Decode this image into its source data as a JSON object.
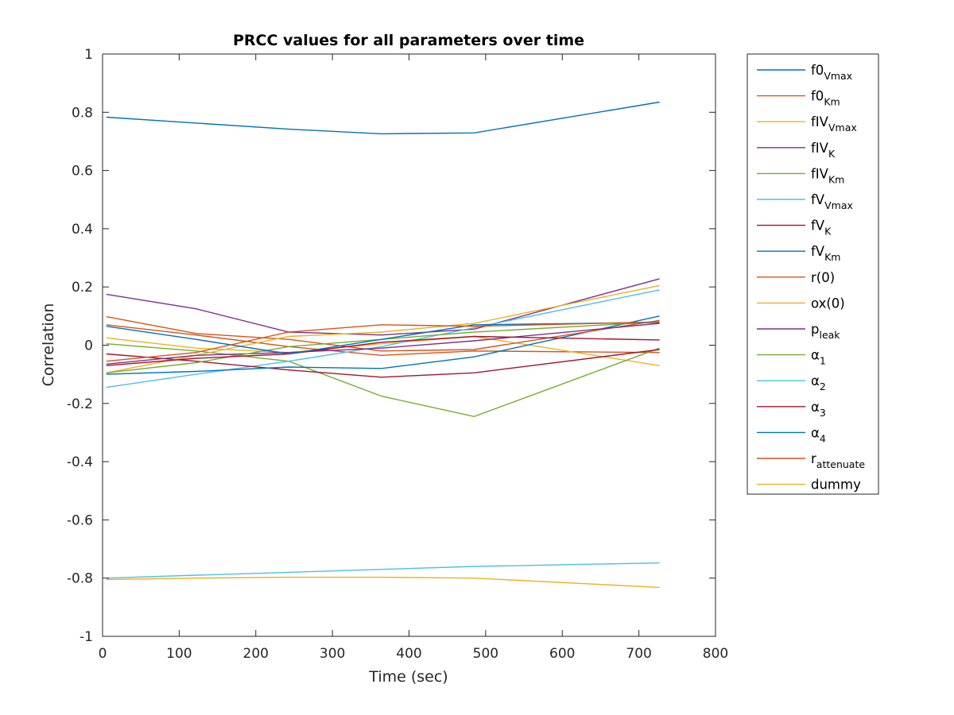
{
  "chart_data": {
    "type": "line",
    "title": "PRCC values for all parameters over time",
    "xlabel": "Time (sec)",
    "ylabel": "Correlation",
    "xlim": [
      0,
      800
    ],
    "ylim": [
      -1,
      1
    ],
    "xticks": [
      0,
      100,
      200,
      300,
      400,
      500,
      600,
      700,
      800
    ],
    "yticks": [
      -1,
      -0.8,
      -0.6,
      -0.4,
      -0.2,
      0,
      0.2,
      0.4,
      0.6,
      0.8,
      1
    ],
    "xtick_labels": [
      "0",
      "100",
      "200",
      "300",
      "400",
      "500",
      "600",
      "700",
      "800"
    ],
    "ytick_labels": [
      "-1",
      "-0.8",
      "-0.6",
      "-0.4",
      "-0.2",
      "0",
      "0.2",
      "0.4",
      "0.6",
      "0.8",
      "1"
    ],
    "grid": false,
    "legend_position": "outside-top-right",
    "x": [
      5,
      122,
      243,
      364,
      485,
      727
    ],
    "series": [
      {
        "label": "f0",
        "sub": "Vmax",
        "color": "#0072BD",
        "values": [
          0.783,
          0.763,
          0.742,
          0.726,
          0.729,
          0.835
        ]
      },
      {
        "label": "f0",
        "sub": "Km",
        "color": "#D95319",
        "values": [
          0.07,
          0.035,
          -0.005,
          -0.035,
          -0.02,
          -0.025
        ]
      },
      {
        "label": "fIV",
        "sub": "Vmax",
        "color": "#EDB120",
        "values": [
          0.025,
          -0.01,
          -0.025,
          0.005,
          0.03,
          -0.07
        ]
      },
      {
        "label": "fIV",
        "sub": "K",
        "color": "#7E2F8E",
        "values": [
          0.175,
          0.125,
          0.045,
          0.035,
          0.055,
          0.228
        ]
      },
      {
        "label": "fIV",
        "sub": "Km",
        "color": "#77AC30",
        "values": [
          0.005,
          -0.02,
          -0.055,
          -0.175,
          -0.245,
          -0.01
        ]
      },
      {
        "label": "fV",
        "sub": "Vmax",
        "color": "#4DBEEE",
        "values": [
          -0.145,
          -0.1,
          -0.055,
          -0.005,
          0.06,
          0.19
        ]
      },
      {
        "label": "fV",
        "sub": "K",
        "color": "#A2142F",
        "values": [
          -0.03,
          -0.055,
          -0.085,
          -0.11,
          -0.095,
          -0.015
        ]
      },
      {
        "label": "fV",
        "sub": "Km",
        "color": "#0072BD",
        "values": [
          -0.1,
          -0.09,
          -0.075,
          -0.08,
          -0.04,
          0.1
        ]
      },
      {
        "label": "r(0)",
        "sub": "",
        "color": "#D95319",
        "values": [
          0.098,
          0.04,
          0.02,
          -0.02,
          -0.015,
          0.085
        ]
      },
      {
        "label": "ox(0)",
        "sub": "",
        "color": "#EDB120",
        "values": [
          -0.095,
          -0.035,
          0.03,
          0.045,
          0.075,
          0.205
        ]
      },
      {
        "label": "p",
        "sub": "leak",
        "color": "#7E2F8E",
        "values": [
          -0.065,
          -0.035,
          -0.025,
          -0.01,
          0.015,
          0.075
        ]
      },
      {
        "label": "α",
        "sub": "1",
        "color": "#77AC30",
        "values": [
          -0.095,
          -0.06,
          -0.005,
          0.02,
          0.045,
          0.08
        ]
      },
      {
        "label": "α",
        "sub": "2",
        "color": "#4DBEEE",
        "values": [
          -0.8,
          -0.79,
          -0.78,
          -0.77,
          -0.76,
          -0.748
        ]
      },
      {
        "label": "α",
        "sub": "3",
        "color": "#A2142F",
        "values": [
          -0.07,
          -0.045,
          -0.03,
          0.01,
          0.03,
          0.018
        ]
      },
      {
        "label": "α",
        "sub": "4",
        "color": "#0072BD",
        "values": [
          0.065,
          0.02,
          -0.03,
          0.02,
          0.07,
          0.078
        ]
      },
      {
        "label": "r",
        "sub": "attenuate",
        "color": "#D95319",
        "values": [
          -0.055,
          -0.025,
          0.045,
          0.07,
          0.065,
          0.08
        ]
      },
      {
        "label": "dummy",
        "sub": "",
        "color": "#EDB120",
        "values": [
          -0.805,
          -0.8,
          -0.797,
          -0.797,
          -0.8,
          -0.832
        ]
      }
    ]
  }
}
